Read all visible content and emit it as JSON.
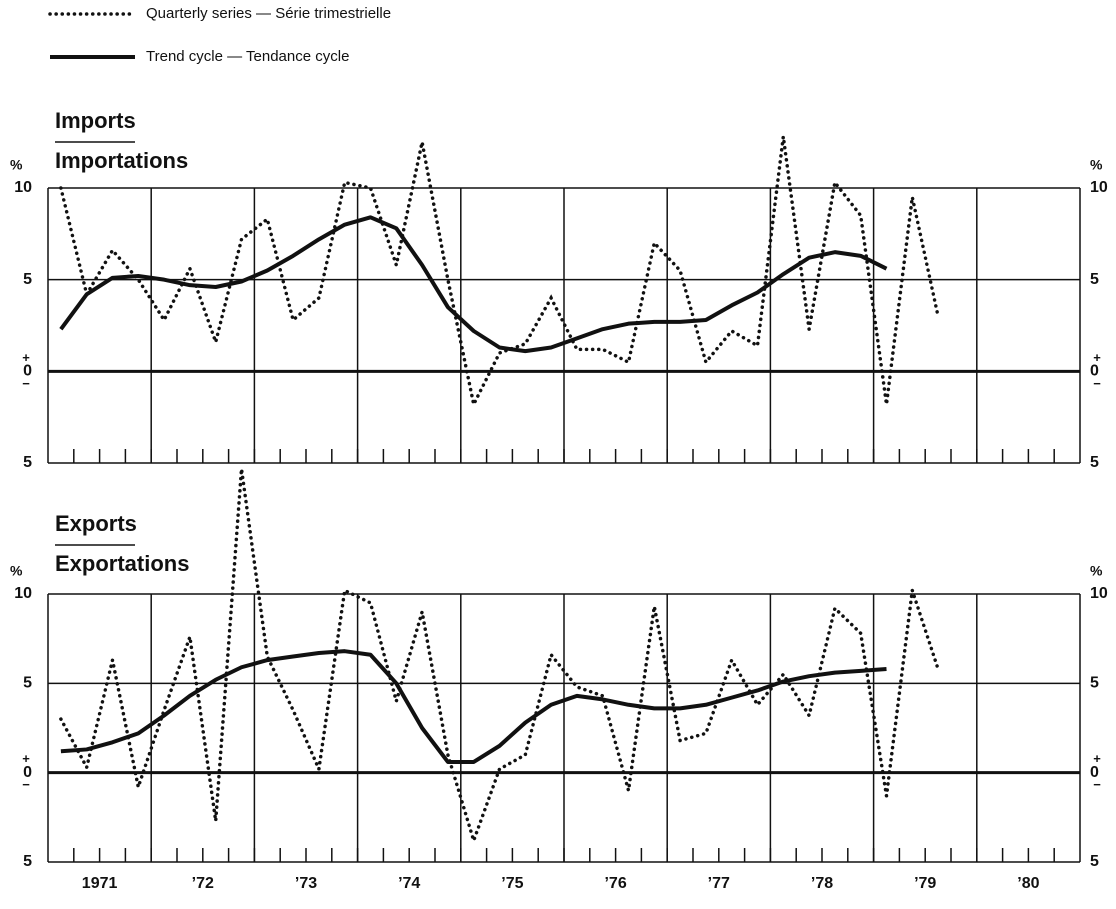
{
  "chart_data": [
    {
      "type": "line",
      "title": "Imports",
      "subtitle": "Importations",
      "y_unit": "%",
      "sign_labels": [
        "+",
        "−"
      ],
      "xlim": [
        1971,
        1981
      ],
      "ylim": [
        -5,
        10
      ],
      "yticks": [
        {
          "value": -5,
          "label": "5"
        },
        0,
        5,
        10
      ],
      "xgrid": [
        1972,
        1973,
        1974,
        1975,
        1976,
        1977,
        1978,
        1979,
        1980
      ],
      "minor_xticks": [
        1971.25,
        1971.5,
        1971.75,
        1972,
        1972.25,
        1972.5,
        1972.75,
        1973,
        1973.25,
        1973.5,
        1973.75,
        1974,
        1974.25,
        1974.5,
        1974.75,
        1975,
        1975.25,
        1975.5,
        1975.75,
        1976,
        1976.25,
        1976.5,
        1976.75,
        1977,
        1977.25,
        1977.5,
        1977.75,
        1978,
        1978.25,
        1978.5,
        1978.75,
        1979,
        1979.25,
        1979.5,
        1979.75,
        1980,
        1980.25,
        1980.5,
        1980.75
      ],
      "series": [
        {
          "name": "Quarterly series — Série trimestrielle",
          "style": "dotted",
          "color": "#111111",
          "x": [
            1971.125,
            1971.375,
            1971.625,
            1971.875,
            1972.125,
            1972.375,
            1972.625,
            1972.875,
            1973.125,
            1973.375,
            1973.625,
            1973.875,
            1974.125,
            1974.375,
            1974.625,
            1974.875,
            1975.125,
            1975.375,
            1975.625,
            1975.875,
            1976.125,
            1976.375,
            1976.625,
            1976.875,
            1977.125,
            1977.375,
            1977.625,
            1977.875,
            1978.125,
            1978.375,
            1978.625,
            1978.875,
            1979.125,
            1979.375,
            1979.625
          ],
          "values": [
            10,
            4.2,
            6.6,
            5,
            2.8,
            5.6,
            1.6,
            7.2,
            8.3,
            2.8,
            4,
            10.3,
            10,
            5.8,
            12.5,
            5,
            -1.8,
            1,
            1.5,
            4,
            1.2,
            1.2,
            0.5,
            7,
            5.5,
            0.5,
            2.2,
            1.4,
            12.8,
            2.3,
            10.3,
            8.5,
            -1.8,
            9.5,
            3
          ]
        },
        {
          "name": "Trend cycle — Tendance cycle",
          "style": "solid",
          "color": "#111111",
          "x": [
            1971.125,
            1971.375,
            1971.625,
            1971.875,
            1972.125,
            1972.375,
            1972.625,
            1972.875,
            1973.125,
            1973.375,
            1973.625,
            1973.875,
            1974.125,
            1974.375,
            1974.625,
            1974.875,
            1975.125,
            1975.375,
            1975.625,
            1975.875,
            1976.125,
            1976.375,
            1976.625,
            1976.875,
            1977.125,
            1977.375,
            1977.625,
            1977.875,
            1978.125,
            1978.375,
            1978.625,
            1978.875,
            1979.125
          ],
          "values": [
            2.3,
            4.2,
            5.1,
            5.2,
            5,
            4.7,
            4.6,
            4.9,
            5.5,
            6.3,
            7.2,
            8,
            8.4,
            7.8,
            5.8,
            3.5,
            2.2,
            1.3,
            1.1,
            1.3,
            1.8,
            2.3,
            2.6,
            2.7,
            2.7,
            2.8,
            3.6,
            4.3,
            5.3,
            6.2,
            6.5,
            6.3,
            5.6
          ]
        }
      ]
    },
    {
      "type": "line",
      "title": "Exports",
      "subtitle": "Exportations",
      "y_unit": "%",
      "sign_labels": [
        "+",
        "−"
      ],
      "xlim": [
        1971,
        1981
      ],
      "ylim": [
        -5,
        10
      ],
      "yticks": [
        {
          "value": -5,
          "label": "5"
        },
        0,
        5,
        10
      ],
      "xticks": [
        {
          "value": 1971.5,
          "label": "1971"
        },
        {
          "value": 1972.5,
          "label": "’72"
        },
        {
          "value": 1973.5,
          "label": "’73"
        },
        {
          "value": 1974.5,
          "label": "’74"
        },
        {
          "value": 1975.5,
          "label": "’75"
        },
        {
          "value": 1976.5,
          "label": "’76"
        },
        {
          "value": 1977.5,
          "label": "’77"
        },
        {
          "value": 1978.5,
          "label": "’78"
        },
        {
          "value": 1979.5,
          "label": "’79"
        },
        {
          "value": 1980.5,
          "label": "’80"
        }
      ],
      "xgrid": [
        1972,
        1973,
        1974,
        1975,
        1976,
        1977,
        1978,
        1979,
        1980
      ],
      "minor_xticks": [
        1971.25,
        1971.5,
        1971.75,
        1972,
        1972.25,
        1972.5,
        1972.75,
        1973,
        1973.25,
        1973.5,
        1973.75,
        1974,
        1974.25,
        1974.5,
        1974.75,
        1975,
        1975.25,
        1975.5,
        1975.75,
        1976,
        1976.25,
        1976.5,
        1976.75,
        1977,
        1977.25,
        1977.5,
        1977.75,
        1978,
        1978.25,
        1978.5,
        1978.75,
        1979,
        1979.25,
        1979.5,
        1979.75,
        1980,
        1980.25,
        1980.5,
        1980.75
      ],
      "series": [
        {
          "style": "dotted",
          "color": "#111111",
          "x": [
            1971.125,
            1971.375,
            1971.625,
            1971.875,
            1972.125,
            1972.375,
            1972.625,
            1972.875,
            1973.125,
            1973.375,
            1973.625,
            1973.875,
            1974.125,
            1974.375,
            1974.625,
            1974.875,
            1975.125,
            1975.375,
            1975.625,
            1975.875,
            1976.125,
            1976.375,
            1976.625,
            1976.875,
            1977.125,
            1977.375,
            1977.625,
            1977.875,
            1978.125,
            1978.375,
            1978.625,
            1978.875,
            1979.125,
            1979.375,
            1979.625
          ],
          "values": [
            3,
            0.3,
            6.3,
            -0.8,
            3.5,
            7.6,
            -2.7,
            17,
            6.5,
            3.5,
            0.2,
            10.2,
            9.5,
            4,
            9,
            1,
            -3.8,
            0.2,
            1,
            6.6,
            4.8,
            4.3,
            -1,
            9.3,
            1.8,
            2.2,
            6.3,
            3.8,
            5.5,
            3.2,
            9.2,
            7.8,
            -1.3,
            10.2,
            5.8
          ]
        },
        {
          "style": "solid",
          "color": "#111111",
          "x": [
            1971.125,
            1971.375,
            1971.625,
            1971.875,
            1972.125,
            1972.375,
            1972.625,
            1972.875,
            1973.125,
            1973.375,
            1973.625,
            1973.875,
            1974.125,
            1974.375,
            1974.625,
            1974.875,
            1975.125,
            1975.375,
            1975.625,
            1975.875,
            1976.125,
            1976.375,
            1976.625,
            1976.875,
            1977.125,
            1977.375,
            1977.625,
            1977.875,
            1978.125,
            1978.375,
            1978.625,
            1978.875,
            1979.125
          ],
          "values": [
            1.2,
            1.3,
            1.7,
            2.2,
            3.2,
            4.3,
            5.2,
            5.9,
            6.3,
            6.5,
            6.7,
            6.8,
            6.6,
            5,
            2.5,
            0.6,
            0.6,
            1.5,
            2.8,
            3.8,
            4.3,
            4.1,
            3.8,
            3.6,
            3.6,
            3.8,
            4.2,
            4.6,
            5.1,
            5.4,
            5.6,
            5.7,
            5.8
          ]
        }
      ]
    }
  ]
}
